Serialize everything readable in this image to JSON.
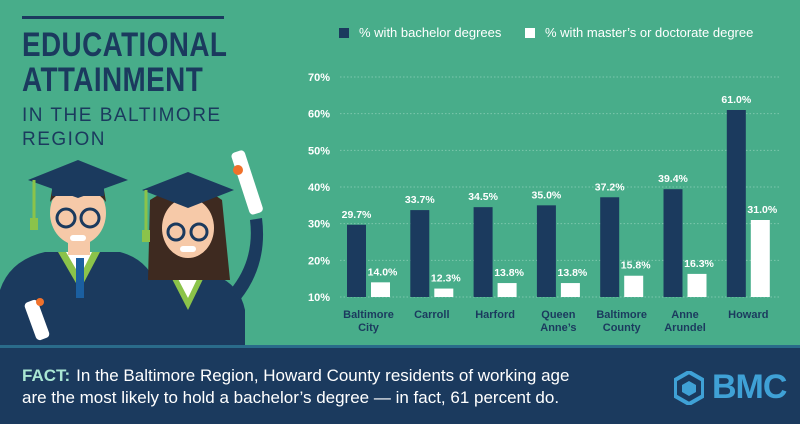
{
  "header": {
    "title": "EDUCATIONAL\nATTAINMENT",
    "subtitle": "IN THE BALTIMORE REGION"
  },
  "legend": {
    "bachelor_label": "% with bachelor degrees",
    "masters_label": "% with master’s or doctorate degree"
  },
  "footer": {
    "fact_label": "FACT:",
    "fact_text": "In the Baltimore Region, Howard County residents of working age are the most likely to hold a bachelor’s degree — in fact, 61 percent do.",
    "logo_text": "BMC"
  },
  "colors": {
    "background": "#48ad8a",
    "navy": "#1b3a5e",
    "white": "#ffffff",
    "logo_blue": "#3fa1d6"
  },
  "chart_data": {
    "type": "bar",
    "categories": [
      "Baltimore\nCity",
      "Carroll",
      "Harford",
      "Queen\nAnne’s",
      "Baltimore\nCounty",
      "Anne\nArundel",
      "Howard"
    ],
    "series": [
      {
        "name": "% with bachelor degrees",
        "values": [
          29.7,
          33.7,
          34.5,
          35.0,
          37.2,
          39.4,
          61.0
        ],
        "color": "#1b3a5e"
      },
      {
        "name": "% with master’s or doctorate degree",
        "values": [
          14.0,
          12.3,
          13.8,
          13.8,
          15.8,
          16.3,
          31.0
        ],
        "color": "#ffffff"
      }
    ],
    "y_ticks": [
      "70%",
      "60%",
      "50%",
      "40%",
      "30%",
      "20%",
      "10%"
    ],
    "ylim": [
      10,
      70
    ],
    "grid": true,
    "legend_position": "top"
  }
}
